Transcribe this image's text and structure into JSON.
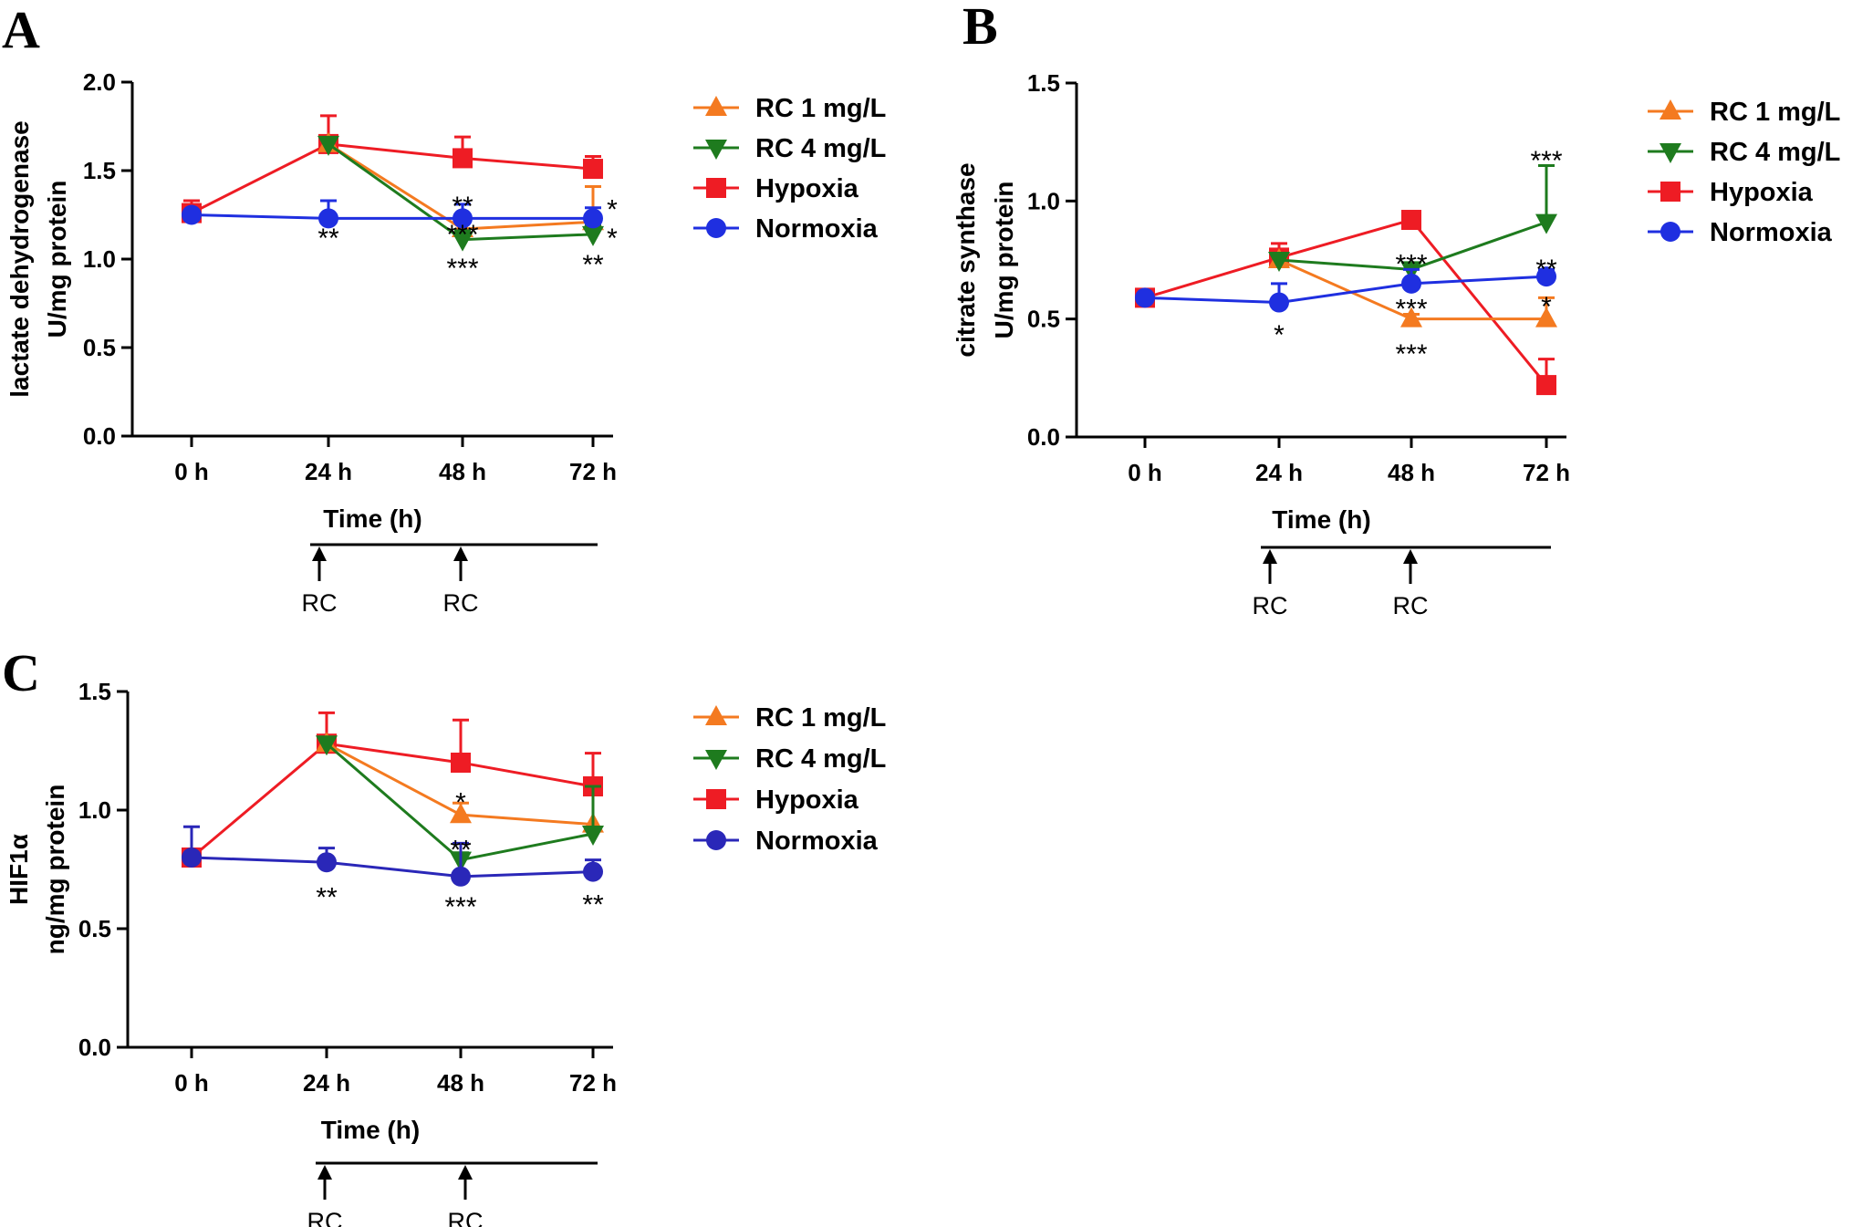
{
  "colors": {
    "RC 1 mg/L": "#f47a20",
    "RC 4 mg/L": "#1e7b1e",
    "Hypoxia": "#ee1c24",
    "Normoxia": "#1f2fe0",
    "Normoxia_C": "#2a27b8"
  },
  "chart_data": [
    {
      "panel": "A",
      "type": "line",
      "categories": [
        "0 h",
        "24 h",
        "48 h",
        "72 h"
      ],
      "xlabel": "Time (h)",
      "ylabel": [
        "lactate dehydrogenase",
        "U/mg protein"
      ],
      "ylim": [
        0,
        2.0
      ],
      "yticks": [
        "0.0",
        "0.5",
        "1.0",
        "1.5",
        "2.0"
      ],
      "series": [
        {
          "name": "RC 1 mg/L",
          "marker": "triangle-up",
          "values": [
            null,
            1.65,
            1.17,
            1.21
          ],
          "err": [
            null,
            0,
            0.05,
            0.2
          ]
        },
        {
          "name": "RC 4 mg/L",
          "marker": "triangle-down",
          "values": [
            null,
            1.65,
            1.11,
            1.14
          ],
          "err": [
            null,
            0,
            0.05,
            0.05
          ]
        },
        {
          "name": "Hypoxia",
          "marker": "square",
          "values": [
            1.26,
            1.65,
            1.57,
            1.51
          ],
          "err": [
            0.07,
            0.16,
            0.12,
            0.07
          ]
        },
        {
          "name": "Normoxia",
          "marker": "circle",
          "values": [
            1.25,
            1.23,
            1.23,
            1.23
          ],
          "err": [
            0,
            0.1,
            0.08,
            0.06
          ]
        }
      ],
      "annotations": [
        {
          "text": "**",
          "x": 1,
          "y": 1.13
        },
        {
          "text": "**",
          "x": 2,
          "y": 1.31
        },
        {
          "text": "***",
          "x": 2,
          "y": 1.15
        },
        {
          "text": "***",
          "x": 2,
          "y": 0.96
        },
        {
          "text": "*",
          "x": 3.15,
          "y": 1.29
        },
        {
          "text": "*",
          "x": 3.15,
          "y": 1.13
        },
        {
          "text": "**",
          "x": 3,
          "y": 0.98
        }
      ],
      "treatment": [
        "RC",
        "RC"
      ]
    },
    {
      "panel": "B",
      "type": "line",
      "categories": [
        "0 h",
        "24 h",
        "48 h",
        "72 h"
      ],
      "xlabel": "Time (h)",
      "ylabel": [
        "citrate synthase",
        "U/mg protein"
      ],
      "ylim": [
        0,
        1.5
      ],
      "yticks": [
        "0.0",
        "0.5",
        "1.0",
        "1.5"
      ],
      "series": [
        {
          "name": "RC 1 mg/L",
          "marker": "triangle-up",
          "values": [
            null,
            0.75,
            0.5,
            0.5
          ],
          "err": [
            null,
            0,
            0.02,
            0.09
          ]
        },
        {
          "name": "RC 4 mg/L",
          "marker": "triangle-down",
          "values": [
            null,
            0.75,
            0.71,
            0.91
          ],
          "err": [
            null,
            0,
            0.02,
            0.24
          ]
        },
        {
          "name": "Hypoxia",
          "marker": "square",
          "values": [
            0.59,
            0.76,
            0.92,
            0.22
          ],
          "err": [
            0.01,
            0.06,
            0.03,
            0.11
          ]
        },
        {
          "name": "Normoxia",
          "marker": "circle",
          "values": [
            0.59,
            0.57,
            0.65,
            0.68
          ],
          "err": [
            0,
            0.08,
            0.06,
            0.03
          ]
        }
      ],
      "annotations": [
        {
          "text": "*",
          "x": 1,
          "y": 0.44
        },
        {
          "text": "***",
          "x": 2,
          "y": 0.74
        },
        {
          "text": "***",
          "x": 2,
          "y": 0.55
        },
        {
          "text": "***",
          "x": 2,
          "y": 0.36
        },
        {
          "text": "***",
          "x": 3,
          "y": 1.18
        },
        {
          "text": "**",
          "x": 3,
          "y": 0.72
        },
        {
          "text": "*",
          "x": 3,
          "y": 0.56
        }
      ],
      "treatment": [
        "RC",
        "RC"
      ]
    },
    {
      "panel": "C",
      "type": "line",
      "categories": [
        "0 h",
        "24 h",
        "48 h",
        "72 h"
      ],
      "xlabel": "Time (h)",
      "ylabel": [
        "HIF1α",
        "ng/mg protein"
      ],
      "ylim": [
        0,
        1.5
      ],
      "yticks": [
        "0.0",
        "0.5",
        "1.0",
        "1.5"
      ],
      "series": [
        {
          "name": "RC 1 mg/L",
          "marker": "triangle-up",
          "values": [
            null,
            1.28,
            0.98,
            0.94
          ],
          "err": [
            null,
            0,
            0.05,
            0
          ]
        },
        {
          "name": "RC 4 mg/L",
          "marker": "triangle-down",
          "values": [
            null,
            1.28,
            0.79,
            0.9
          ],
          "err": [
            null,
            0,
            0.03,
            0.2
          ]
        },
        {
          "name": "Hypoxia",
          "marker": "square",
          "values": [
            0.8,
            1.28,
            1.2,
            1.1
          ],
          "err": [
            0.01,
            0.13,
            0.18,
            0.14
          ]
        },
        {
          "name": "Normoxia",
          "marker": "circle",
          "values": [
            0.8,
            0.78,
            0.72,
            0.74
          ],
          "err": [
            0.13,
            0.06,
            0.14,
            0.05
          ]
        }
      ],
      "annotations": [
        {
          "text": "*",
          "x": 2,
          "y": 1.04
        },
        {
          "text": "**",
          "x": 2,
          "y": 0.84
        },
        {
          "text": "**",
          "x": 1,
          "y": 0.64
        },
        {
          "text": "***",
          "x": 2,
          "y": 0.6
        },
        {
          "text": "**",
          "x": 3,
          "y": 0.61
        }
      ],
      "treatment": [
        "RC",
        "RC"
      ]
    }
  ]
}
